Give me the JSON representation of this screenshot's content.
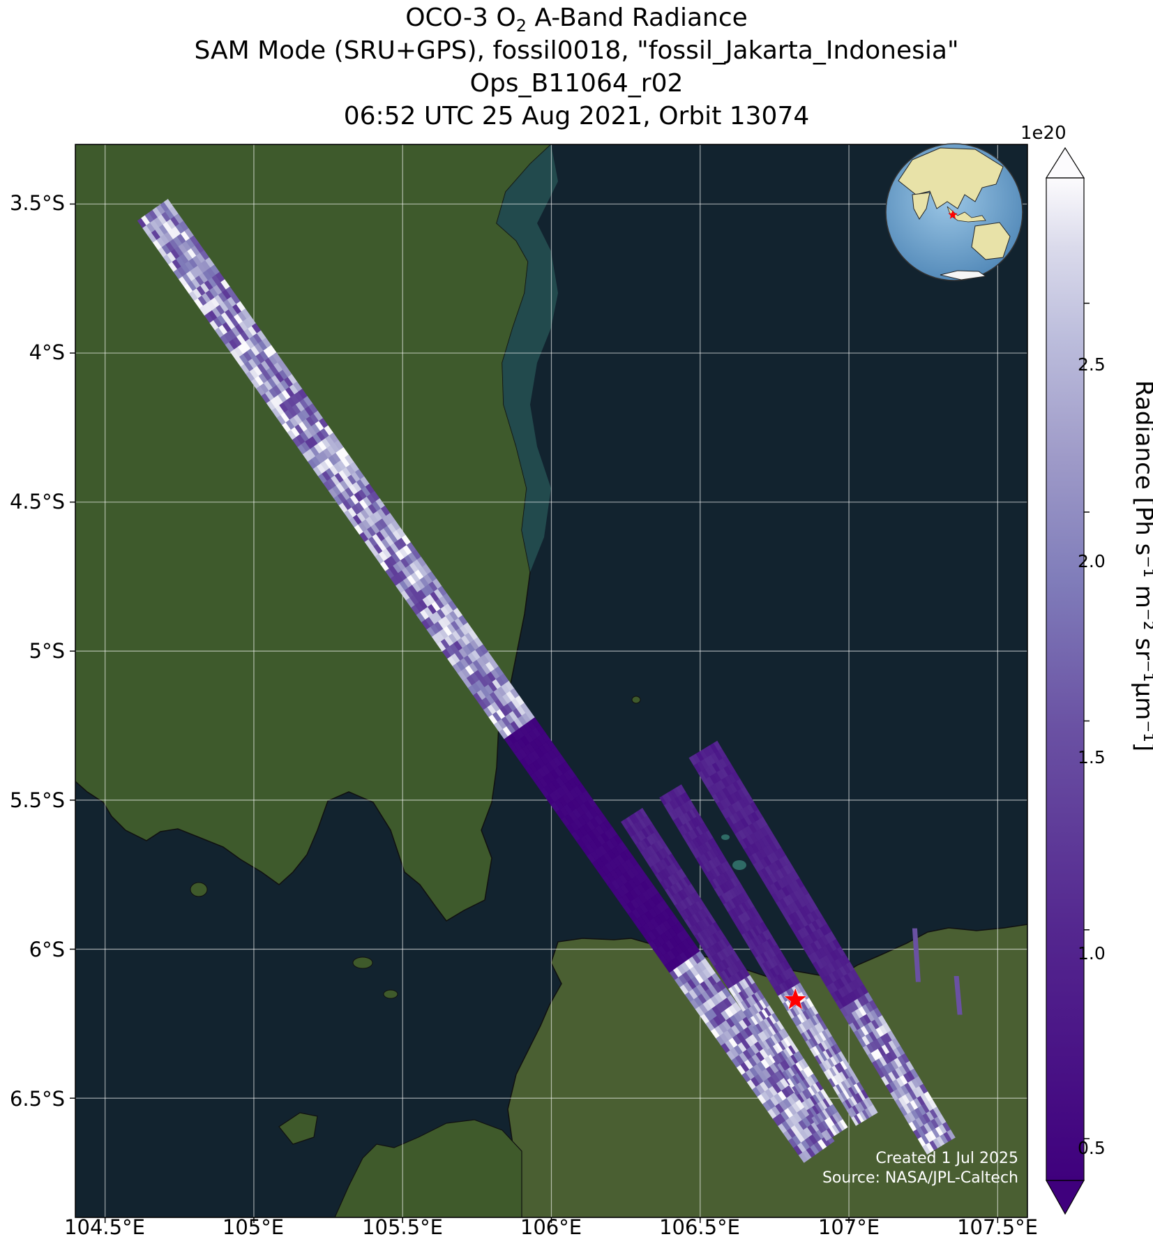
{
  "title": {
    "line1_prefix": "OCO-3 O",
    "line1_sub": "2",
    "line1_suffix": " A-Band Radiance",
    "line2": "SAM Mode (SRU+GPS), fossil0018, \"fossil_Jakarta_Indonesia\"",
    "line3": "Ops_B11064_r02",
    "line4": "06:52 UTC 25 Aug 2021, Orbit 13074"
  },
  "map": {
    "lat_ticks": [
      "3.5°S",
      "4°S",
      "4.5°S",
      "5°S",
      "5.5°S",
      "6°S",
      "6.5°S"
    ],
    "lon_ticks": [
      "104.5°E",
      "105°E",
      "105.5°E",
      "106°E",
      "106.5°E",
      "107°E",
      "107.5°E"
    ],
    "extent": {
      "lon": [
        104.4,
        107.6
      ],
      "lat": [
        -6.9,
        -3.3
      ]
    },
    "target_marker": {
      "lon": 106.82,
      "lat": -6.17,
      "color": "#ff0000",
      "icon": "star"
    },
    "land_color": "#3e5a2c",
    "sea_color": "#12232f",
    "gridlines": true
  },
  "colorbar": {
    "label": "Radiance [Ph s⁻¹ m⁻² sr⁻¹μm⁻¹]",
    "exponent": "1e20",
    "ticks": [
      "0.5",
      "1.0",
      "1.5",
      "2.0",
      "2.5"
    ],
    "range": [
      0.4,
      2.8
    ],
    "colormap": "Purples_r",
    "extend": "both"
  },
  "swaths": [
    {
      "id": "main-swath",
      "from": {
        "lon": 104.66,
        "lat": -3.52
      },
      "to": {
        "lon": 106.9,
        "lat": -6.68
      },
      "profile": "land-bright / sea-dark"
    },
    {
      "id": "swath-2",
      "from": {
        "lon": 106.27,
        "lat": -5.55
      },
      "to": {
        "lon": 106.96,
        "lat": -6.62
      }
    },
    {
      "id": "swath-3",
      "from": {
        "lon": 106.4,
        "lat": -5.47
      },
      "to": {
        "lon": 107.06,
        "lat": -6.57
      }
    },
    {
      "id": "swath-4",
      "from": {
        "lon": 106.51,
        "lat": -5.33
      },
      "to": {
        "lon": 107.31,
        "lat": -6.66
      }
    }
  ],
  "inset_globe": {
    "land_color": "#e8e2a8",
    "ocean_color": "#6ea6d2",
    "marker_color": "#ff0000"
  },
  "credits": {
    "line1": "Created 1 Jul 2025",
    "line2": "Source: NASA/JPL-Caltech"
  }
}
